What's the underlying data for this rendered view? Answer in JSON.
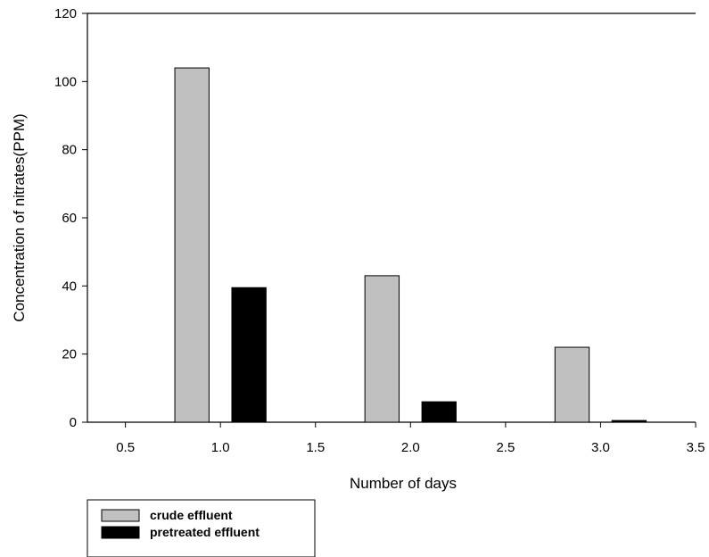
{
  "chart_data": {
    "type": "bar",
    "title": "",
    "xlabel": "Number of days",
    "ylabel": "Concentration of nitrates(PPM)",
    "xlim": [
      0.3,
      3.5
    ],
    "ylim": [
      0,
      120
    ],
    "x_ticks": [
      "0.5",
      "1.0",
      "1.5",
      "2.0",
      "2.5",
      "3.0",
      "3.5"
    ],
    "y_ticks": [
      "0",
      "20",
      "40",
      "60",
      "80",
      "100",
      "120"
    ],
    "grid": false,
    "legend_position": "bottom-left",
    "series": [
      {
        "name": "crude effluent",
        "color": "#c0c0c0",
        "x": [
          0.85,
          1.85,
          2.85
        ],
        "values": [
          104,
          43,
          22
        ]
      },
      {
        "name": "pretreated effluent",
        "color": "#000000",
        "x": [
          1.15,
          2.15,
          3.15
        ],
        "values": [
          39.5,
          6,
          0.5
        ]
      }
    ]
  }
}
